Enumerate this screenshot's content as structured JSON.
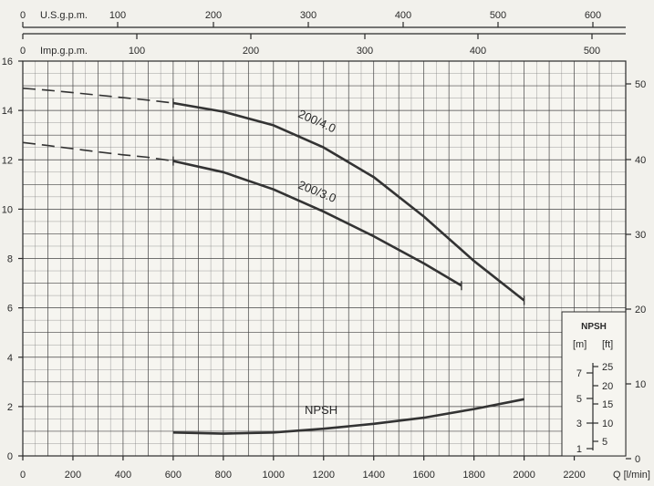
{
  "chart_data": {
    "type": "line",
    "x_unit_label": "Q [l/min]",
    "xlim": [
      0,
      2400
    ],
    "x_ticks": [
      0,
      200,
      400,
      600,
      800,
      1000,
      1200,
      1400,
      1600,
      1800,
      2000,
      2200
    ],
    "ylim": [
      0,
      16
    ],
    "y_ticks": [
      0,
      2,
      4,
      6,
      8,
      10,
      12,
      14,
      16
    ],
    "right_ticks": [
      "0",
      "10",
      "20",
      "30",
      "40",
      "50"
    ],
    "top_axes": [
      {
        "label": "U.S.g.p.m.",
        "ticks": [
          "0",
          "100",
          "200",
          "300",
          "400",
          "500",
          "600"
        ]
      },
      {
        "label": "Imp.g.p.m.",
        "ticks": [
          "0",
          "100",
          "200",
          "300",
          "400",
          "500"
        ]
      }
    ],
    "series": [
      {
        "name": "200/4.0",
        "dashed_x": [
          0,
          100,
          200,
          300,
          400,
          500,
          600
        ],
        "dashed_y": [
          14.9,
          14.82,
          14.72,
          14.62,
          14.52,
          14.42,
          14.3
        ],
        "x": [
          600,
          800,
          1000,
          1200,
          1400,
          1600,
          1800,
          2000
        ],
        "y": [
          14.3,
          13.95,
          13.4,
          12.5,
          11.3,
          9.7,
          7.9,
          6.3
        ]
      },
      {
        "name": "200/3.0",
        "dashed_x": [
          0,
          100,
          200,
          300,
          400,
          500,
          600
        ],
        "dashed_y": [
          12.7,
          12.58,
          12.45,
          12.32,
          12.2,
          12.1,
          11.95
        ],
        "x": [
          600,
          800,
          1000,
          1200,
          1400,
          1600,
          1750
        ],
        "y": [
          11.95,
          11.5,
          10.8,
          9.9,
          8.9,
          7.8,
          6.9
        ]
      },
      {
        "name": "NPSH",
        "x": [
          600,
          800,
          1000,
          1200,
          1400,
          1600,
          1800,
          2000
        ],
        "y": [
          0.95,
          0.9,
          0.95,
          1.1,
          1.3,
          1.55,
          1.9,
          2.3
        ]
      }
    ],
    "npsh_legend": {
      "title": "NPSH",
      "unit_m": "[m]",
      "unit_ft": "[ft]",
      "m_ticks": [
        "7",
        "5",
        "3",
        "1"
      ],
      "ft_ticks": [
        "25",
        "20",
        "15",
        "10",
        "5"
      ]
    },
    "grid": true,
    "colors": {
      "curve": "#333333",
      "grid": "#555555",
      "background": "#f2f1ec"
    }
  }
}
